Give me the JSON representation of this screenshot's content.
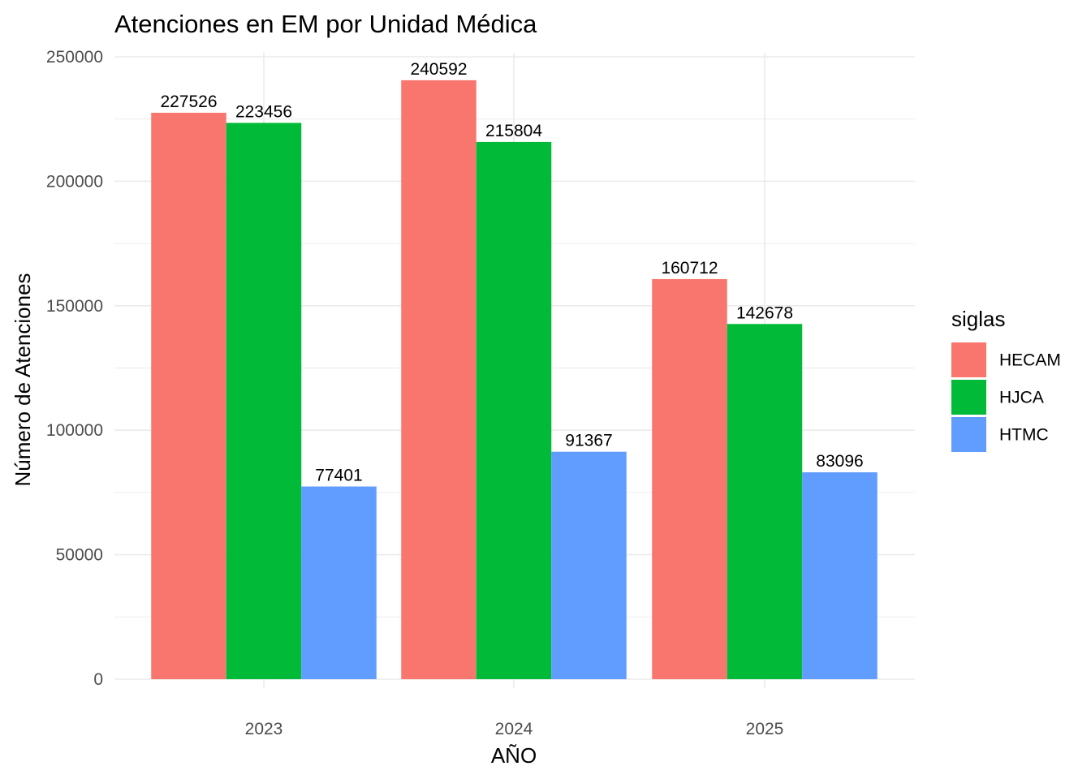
{
  "chart_data": {
    "type": "bar",
    "title": "Atenciones en EM por Unidad Médica",
    "xlabel": "AÑO",
    "ylabel": "Número de Atenciones",
    "categories": [
      "2023",
      "2024",
      "2025"
    ],
    "series": [
      {
        "name": "HECAM",
        "color": "#F8766D",
        "values": [
          227526,
          240592,
          160712
        ]
      },
      {
        "name": "HJCA",
        "color": "#00BA38",
        "values": [
          223456,
          215804,
          142678
        ]
      },
      {
        "name": "HTMC",
        "color": "#619CFF",
        "values": [
          77401,
          91367,
          83096
        ]
      }
    ],
    "ylim": [
      0,
      250000
    ],
    "yticks": [
      "0",
      "50000",
      "100000",
      "150000",
      "200000",
      "250000"
    ],
    "legend": {
      "title": "siglas",
      "position": "right"
    },
    "grid": true,
    "grid_color": "#EBEBEB"
  }
}
